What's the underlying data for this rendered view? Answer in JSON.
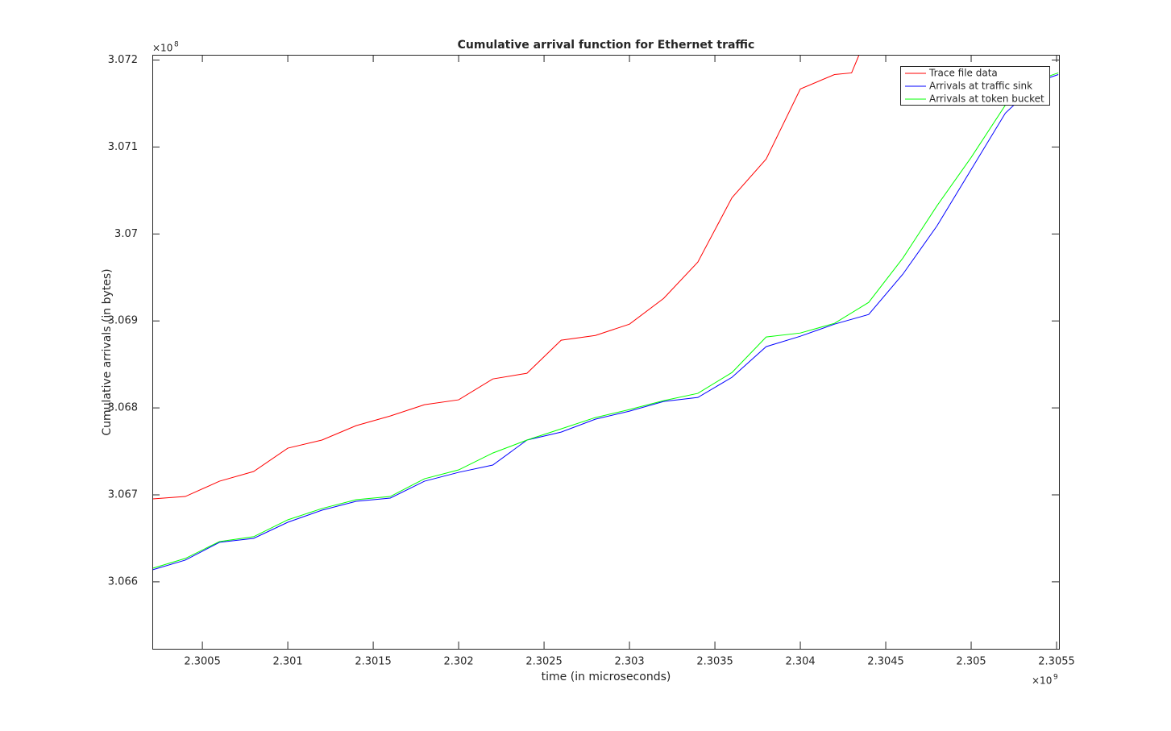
{
  "chart_data": {
    "type": "line",
    "title": "Cumulative arrival function for Ethernet traffic",
    "x_label": "time (in microseconds)",
    "y_label": "Cumulative arrivals (in bytes)",
    "x_multiplier": {
      "base": "×10",
      "exponent": "9"
    },
    "y_multiplier": {
      "base": "×10",
      "exponent": "8"
    },
    "xlim": [
      2.300207,
      2.305514
    ],
    "ylim": [
      3.06523,
      3.07206
    ],
    "xticks": [
      2.3005,
      2.301,
      2.3015,
      2.302,
      2.3025,
      2.303,
      2.3035,
      2.304,
      2.3045,
      2.305,
      2.3055
    ],
    "yticks": [
      3.066,
      3.067,
      3.068,
      3.069,
      3.07,
      3.071,
      3.072
    ],
    "grid": false,
    "legend": "northeast",
    "series": [
      {
        "name": "Trace file data",
        "color": "#ff0000",
        "x": [
          2.30021,
          2.3004,
          2.3006,
          2.3008,
          2.301,
          2.3012,
          2.3014,
          2.3016,
          2.3018,
          2.302,
          2.3022,
          2.3024,
          2.3026,
          2.3028,
          2.303,
          2.3032,
          2.3034,
          2.3036,
          2.3038,
          2.304,
          2.3042,
          2.3043,
          2.304344
        ],
        "values": [
          3.066954,
          3.066981,
          3.067157,
          3.067269,
          3.067537,
          3.06763,
          3.067796,
          3.067907,
          3.068037,
          3.068093,
          3.068333,
          3.068398,
          3.068778,
          3.068833,
          3.068963,
          3.069259,
          3.069676,
          3.070417,
          3.070861,
          3.071667,
          3.071833,
          3.071852,
          3.07206
        ]
      },
      {
        "name": "Arrivals at traffic sink",
        "color": "#0000ff",
        "x": [
          2.30021,
          2.3004,
          2.3006,
          2.3008,
          2.301,
          2.3012,
          2.3014,
          2.3016,
          2.3018,
          2.302,
          2.3022,
          2.3024,
          2.3026,
          2.3028,
          2.303,
          2.3032,
          2.3034,
          2.3036,
          2.3038,
          2.304,
          2.3042,
          2.3044,
          2.3046,
          2.3048,
          2.305,
          2.3052,
          2.3054,
          2.30551
        ],
        "values": [
          3.066139,
          3.06625,
          3.066454,
          3.0665,
          3.066685,
          3.066824,
          3.066926,
          3.066963,
          3.067157,
          3.067259,
          3.067343,
          3.06763,
          3.067722,
          3.06787,
          3.067963,
          3.068074,
          3.06812,
          3.068352,
          3.068704,
          3.068824,
          3.068963,
          3.069074,
          3.069537,
          3.070093,
          3.070741,
          3.071389,
          3.071759,
          3.071833
        ]
      },
      {
        "name": "Arrivals at token bucket",
        "color": "#00ff00",
        "x": [
          2.30021,
          2.3004,
          2.3006,
          2.3008,
          2.301,
          2.3012,
          2.3014,
          2.3016,
          2.3018,
          2.302,
          2.3022,
          2.3024,
          2.3026,
          2.3028,
          2.303,
          2.3032,
          2.3034,
          2.3036,
          2.3038,
          2.304,
          2.3042,
          2.3044,
          2.3046,
          2.3048,
          2.305,
          2.3052,
          2.3054,
          2.30551
        ],
        "values": [
          3.066157,
          3.066269,
          3.066463,
          3.066519,
          3.066713,
          3.066843,
          3.066944,
          3.066981,
          3.067185,
          3.067287,
          3.067481,
          3.06763,
          3.067759,
          3.067889,
          3.067981,
          3.068083,
          3.068167,
          3.068407,
          3.068815,
          3.068861,
          3.068972,
          3.069213,
          3.069722,
          3.070324,
          3.07088,
          3.071481,
          3.071778,
          3.071852
        ]
      }
    ]
  }
}
